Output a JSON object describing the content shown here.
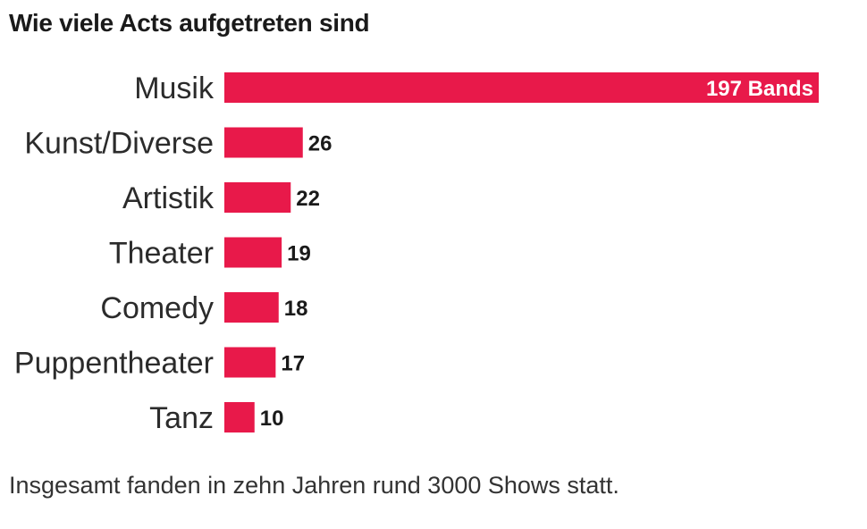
{
  "chart_data": {
    "type": "bar",
    "orientation": "horizontal",
    "title": "Wie viele Acts aufgetreten sind",
    "categories": [
      "Musik",
      "Kunst/Diverse",
      "Artistik",
      "Theater",
      "Comedy",
      "Puppentheater",
      "Tanz"
    ],
    "values": [
      197,
      26,
      22,
      19,
      18,
      17,
      10
    ],
    "value_labels": [
      "197 Bands",
      "26",
      "22",
      "19",
      "18",
      "17",
      "10"
    ],
    "xlim": [
      0,
      197
    ],
    "grid": false,
    "legend": "none",
    "bar_color": "#e8194a",
    "note": "Insgesamt fanden in zehn Jahren rund 3000 Shows statt."
  }
}
